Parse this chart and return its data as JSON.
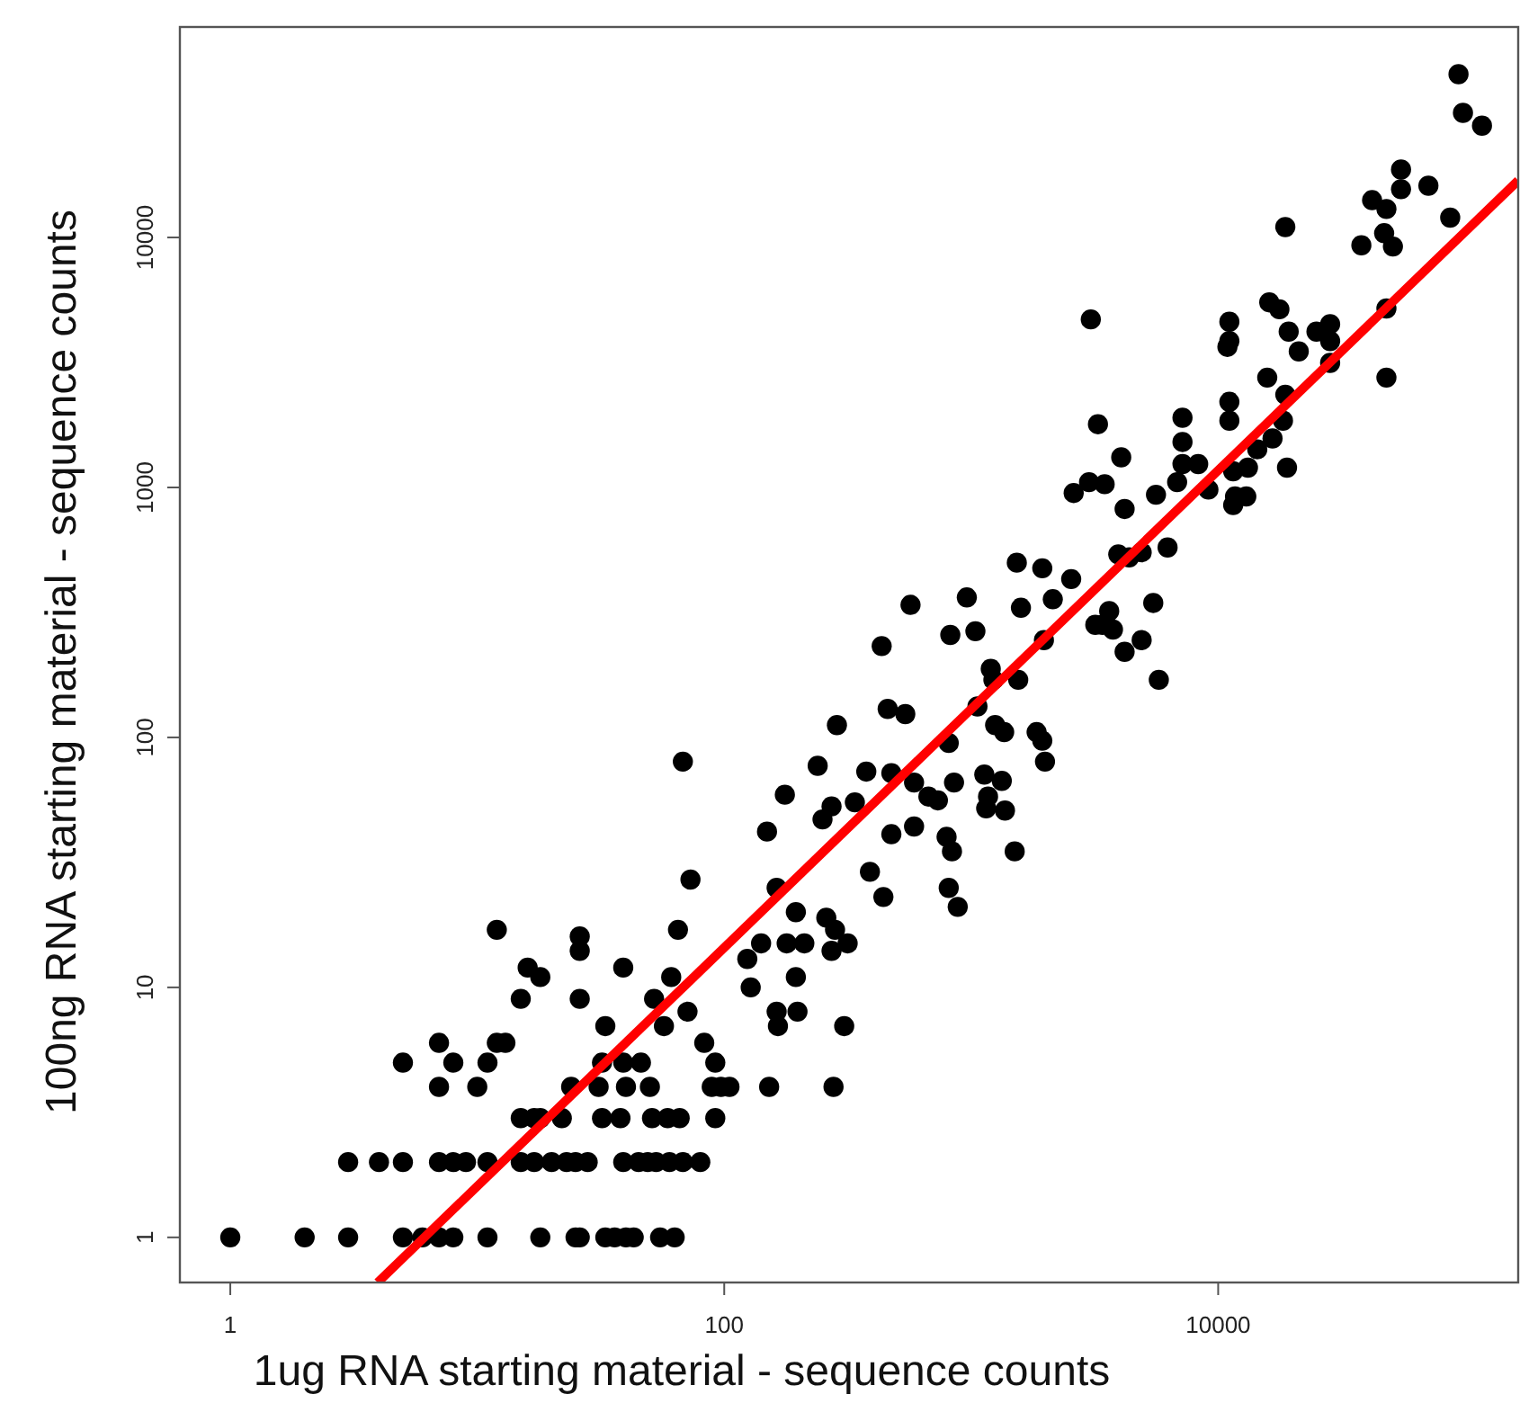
{
  "chart_data": {
    "type": "scatter",
    "xlabel": "1ug RNA starting material - sequence counts",
    "ylabel": "100ng RNA starting material - sequence counts",
    "log": "xy",
    "grid": false,
    "xlim": [
      0.625,
      164000
    ],
    "ylim": [
      0.66,
      69500
    ],
    "xticks": [
      1,
      100,
      10000
    ],
    "yticks": [
      1,
      10,
      100,
      1000,
      10000
    ],
    "series": [
      {
        "marker": "circle",
        "color": "#000000",
        "x": [
          1,
          2,
          3,
          5,
          6,
          7,
          8,
          11,
          18,
          25,
          26,
          33,
          36,
          40,
          43,
          55,
          63,
          3,
          4,
          5,
          7,
          8,
          9,
          11,
          15,
          17,
          20,
          23,
          25,
          28,
          39,
          45,
          49,
          53,
          60,
          68,
          80,
          15,
          17,
          18,
          22,
          32,
          38,
          51,
          59,
          66,
          92,
          7,
          10,
          24,
          31,
          40,
          50,
          89,
          97,
          105,
          152,
          277,
          5,
          8,
          11,
          32,
          39,
          46,
          92,
          7,
          12,
          13,
          83,
          33,
          57,
          165,
          306,
          71,
          163,
          198,
          15,
          26,
          52,
          128,
          18,
          61,
          195,
          16,
          39,
          124,
          26,
          272,
          141,
          179,
          211,
          316,
          26,
          12,
          65,
          281,
          259,
          195,
          882,
          441,
          163,
          811,
          73,
          389,
          836,
          1500,
          795,
          475,
          149,
          587,
          250,
          1370,
          1150,
          272,
          338,
          733,
          671,
          1170,
          176,
          587,
          852,
          1330,
          1130,
          475,
          376,
          239,
          68,
          1990,
          811,
          1940,
          1360,
          1840,
          286,
          1250,
          541,
          459,
          1060,
          1230,
          1550,
          5750,
          1200,
          4180,
          434,
          1970,
          4900,
          823,
          1040,
          3750,
          3180,
          3400,
          3620,
          1590,
          568,
          5460,
          2140,
          960,
          2540,
          1940,
          1530,
          4360,
          3940,
          4900,
          6240,
          4180,
          11500,
          11700,
          13000,
          5600,
          2600,
          9130,
          3470,
          3000,
          6820,
          11500,
          13200,
          19000,
          7170,
          8300,
          4050,
          14400,
          7170,
          16600,
          3260,
          11100,
          18300,
          7170,
          11100,
          18700,
          15800,
          48000,
          28400,
          21200,
          10900,
          11100,
          28400,
          19300,
          25000,
          28400,
          11100,
          3050,
          17700,
          48000,
          16100,
          51000,
          38000,
          47000,
          18700,
          87000,
          48000,
          42000,
          55000,
          71000,
          55000,
          117000,
          98000,
          94000
        ],
        "values": [
          1,
          1,
          1,
          1,
          1,
          1,
          1,
          1,
          1,
          1,
          1,
          1,
          1,
          1,
          1,
          1,
          1,
          2,
          2,
          2,
          2,
          2,
          2,
          2,
          2,
          2,
          2,
          2,
          2,
          2,
          2,
          2,
          2,
          2,
          2,
          2,
          2,
          3,
          3,
          3,
          3,
          3,
          3,
          3,
          3,
          3,
          3,
          4,
          4,
          4,
          4,
          4,
          4,
          4,
          4,
          4,
          4,
          4,
          5,
          5,
          5,
          5,
          5,
          5,
          5,
          6,
          6,
          6,
          6,
          7,
          7,
          7,
          7,
          8,
          8,
          8,
          9,
          9,
          9,
          10,
          11,
          11,
          11,
          12,
          12,
          13,
          14,
          14,
          15,
          15,
          15,
          15,
          16,
          17,
          17,
          17,
          19,
          20,
          21,
          23,
          25,
          25,
          27,
          29,
          35,
          35,
          40,
          41,
          42,
          44,
          47,
          51,
          52,
          53,
          55,
          56,
          58,
          58,
          59,
          66,
          66,
          67,
          71,
          72,
          73,
          77,
          80,
          80,
          95,
          97,
          105,
          105,
          112,
          112,
          124,
          130,
          133,
          170,
          170,
          170,
          188,
          220,
          232,
          245,
          245,
          257,
          266,
          270,
          282,
          282,
          320,
          330,
          339,
          345,
          357,
          363,
          430,
          475,
          500,
          525,
          540,
          550,
          575,
          820,
          850,
          920,
          920,
          935,
          950,
          980,
          1030,
          1050,
          1050,
          1160,
          1200,
          1200,
          1240,
          1240,
          1320,
          1420,
          1520,
          1570,
          1790,
          1850,
          1850,
          1900,
          2200,
          2350,
          2750,
          2750,
          3150,
          3500,
          3650,
          3850,
          3850,
          4200,
          4200,
          4500,
          4600,
          4700,
          5160,
          5200,
          5500,
          9200,
          9300,
          10400,
          11000,
          12000,
          13000,
          14100,
          15600,
          16100,
          18700,
          28000,
          31500,
          45000
        ]
      },
      {
        "type": "line",
        "marker": "none",
        "color": "#ff0000",
        "x": [
          3.95,
          164000
        ],
        "values": [
          0.66,
          16900
        ]
      }
    ]
  }
}
